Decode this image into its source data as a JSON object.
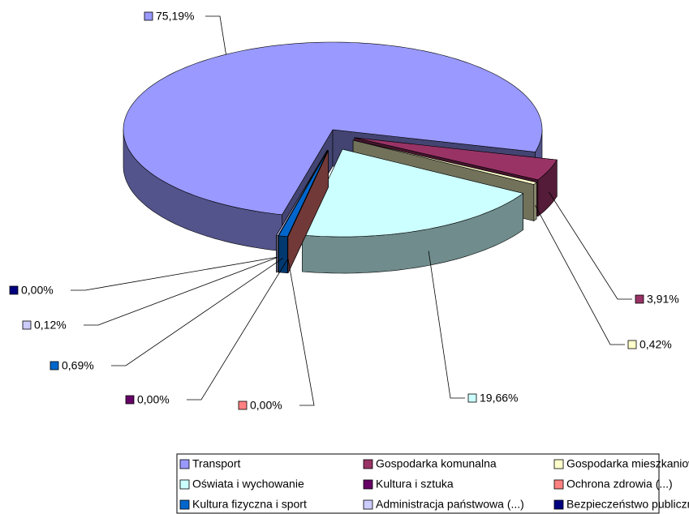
{
  "chart_data": {
    "type": "pie3d",
    "categories": [
      "Transport",
      "Gospodarka komunalna",
      "Gospodarka mieszkaniowa (...)",
      "Oświata i wychowanie",
      "Kultura i sztuka",
      "Ochrona zdrowia (...)",
      "Kultura fizyczna i sport",
      "Administracja państwowa (...)",
      "Bezpieczeństwo publiczne"
    ],
    "values": [
      75.19,
      3.91,
      0.42,
      19.66,
      0.0,
      0.0,
      0.69,
      0.12,
      0.0
    ],
    "value_labels": [
      "75,19%",
      "3,91%",
      "0,42%",
      "19,66%",
      "0,00%",
      "0,00%",
      "0,69%",
      "0,12%",
      "0,00%"
    ],
    "colors": [
      "#9999ff",
      "#993366",
      "#ffffcc",
      "#ccffff",
      "#660066",
      "#ff8080",
      "#0066cc",
      "#ccccff",
      "#000080"
    ],
    "legend": "bottom"
  }
}
